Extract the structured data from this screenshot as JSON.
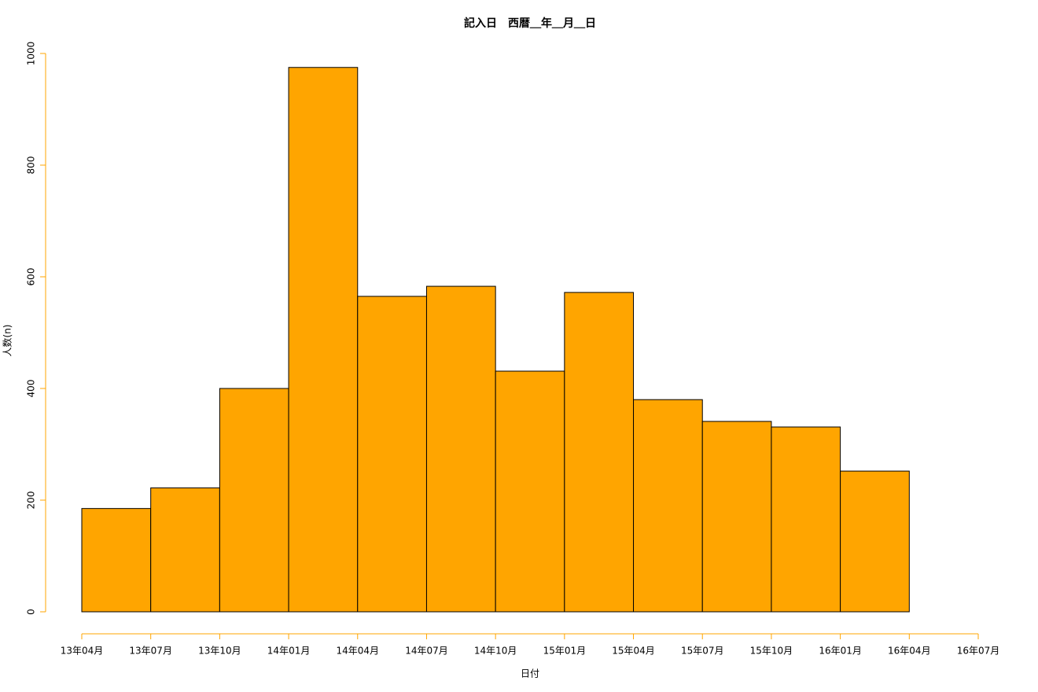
{
  "chart_data": {
    "type": "histogram",
    "title": "記入日　西暦＿年＿月＿日",
    "x_label": "日付",
    "y_label": "人数(n)",
    "bins": [
      "13年04月",
      "13年07月",
      "13年10月",
      "14年01月",
      "14年04月",
      "14年07月",
      "14年10月",
      "15年01月",
      "15年04月",
      "15年07月",
      "15年10月",
      "16年01月",
      "16年04月",
      "16年07月"
    ],
    "values": [
      185,
      222,
      400,
      975,
      565,
      583,
      431,
      572,
      380,
      341,
      331,
      252,
      0
    ],
    "color": "#ffa500",
    "axis_color": "#ffa500",
    "ylim": [
      0,
      1000
    ],
    "yticks": [
      0,
      200,
      400,
      600,
      800,
      1000
    ]
  }
}
